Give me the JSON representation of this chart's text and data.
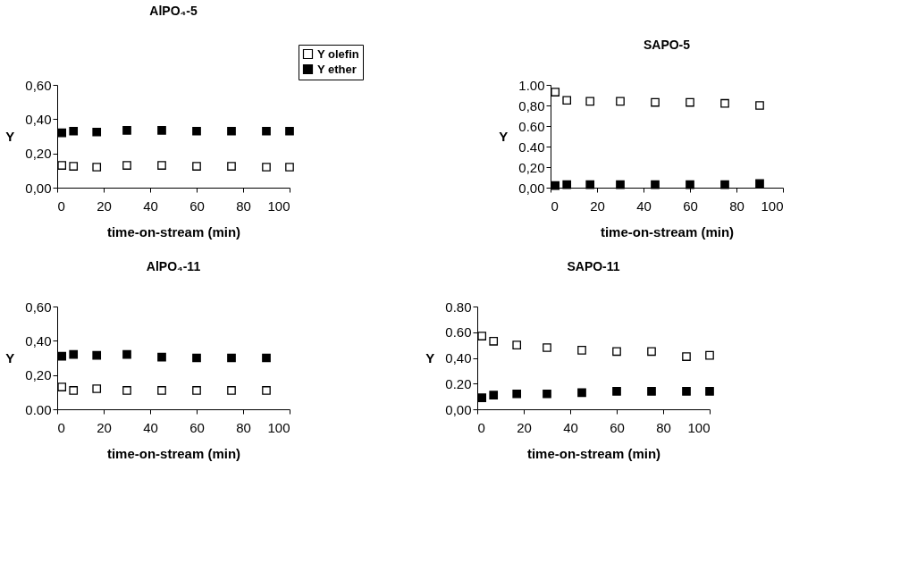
{
  "chart_data": [
    {
      "type": "scatter",
      "title": "AlPO₄-5",
      "xlabel": "time-on-stream (min)",
      "ylabel": "Y",
      "marker": "square",
      "legend": "top right",
      "grid": false,
      "xlim": [
        0,
        100
      ],
      "xticks": [
        0,
        20,
        40,
        60,
        80,
        100
      ],
      "ylim": [
        0,
        0.6
      ],
      "yticks": [
        {
          "value": 0,
          "label": "0,00"
        },
        {
          "value": 0.2,
          "label": "0,20"
        },
        {
          "value": 0.4,
          "label": "0,40"
        },
        {
          "value": 0.6,
          "label": "0,60"
        }
      ],
      "x": [
        2,
        7,
        17,
        30,
        45,
        60,
        75,
        90,
        100
      ],
      "series": [
        {
          "name": "Y olefin",
          "color": "#ffffff",
          "values": [
            0.13,
            0.125,
            0.12,
            0.13,
            0.13,
            0.125,
            0.125,
            0.12,
            0.12
          ]
        },
        {
          "name": "Y ether",
          "color": "#000000",
          "values": [
            0.32,
            0.33,
            0.325,
            0.335,
            0.335,
            0.33,
            0.33,
            0.33,
            0.33
          ]
        }
      ]
    },
    {
      "type": "scatter",
      "title": "SAPO-5",
      "xlabel": "time-on-stream (min)",
      "ylabel": "Y",
      "marker": "square",
      "grid": false,
      "xlim": [
        0,
        100
      ],
      "xticks": [
        0,
        20,
        40,
        60,
        80,
        100
      ],
      "ylim": [
        0,
        1.0
      ],
      "yticks": [
        {
          "value": 0,
          "label": "0,00"
        },
        {
          "value": 0.2,
          "label": "0,20"
        },
        {
          "value": 0.4,
          "label": "0.40"
        },
        {
          "value": 0.6,
          "label": "0.60"
        },
        {
          "value": 0.8,
          "label": "0,80"
        },
        {
          "value": 1.0,
          "label": "1.00"
        }
      ],
      "x": [
        2,
        7,
        17,
        30,
        45,
        60,
        75,
        90
      ],
      "series": [
        {
          "color": "#ffffff",
          "values": [
            0.93,
            0.85,
            0.84,
            0.84,
            0.83,
            0.83,
            0.82,
            0.8
          ]
        },
        {
          "color": "#000000",
          "values": [
            0.02,
            0.03,
            0.03,
            0.03,
            0.03,
            0.03,
            0.03,
            0.04
          ]
        }
      ]
    },
    {
      "type": "scatter",
      "title": "AlPO₄-11",
      "xlabel": "time-on-stream (min)",
      "ylabel": "Y",
      "marker": "square",
      "grid": false,
      "xlim": [
        0,
        100
      ],
      "xticks": [
        0,
        20,
        40,
        60,
        80,
        100
      ],
      "ylim": [
        0,
        0.6
      ],
      "yticks": [
        {
          "value": 0,
          "label": "0.00"
        },
        {
          "value": 0.2,
          "label": "0,20"
        },
        {
          "value": 0.4,
          "label": "0,40"
        },
        {
          "value": 0.6,
          "label": "0,60"
        }
      ],
      "x": [
        2,
        7,
        17,
        30,
        45,
        60,
        75,
        90
      ],
      "series": [
        {
          "color": "#ffffff",
          "values": [
            0.13,
            0.11,
            0.12,
            0.11,
            0.11,
            0.11,
            0.11,
            0.11
          ]
        },
        {
          "color": "#000000",
          "values": [
            0.31,
            0.32,
            0.315,
            0.32,
            0.305,
            0.3,
            0.3,
            0.3
          ]
        }
      ]
    },
    {
      "type": "scatter",
      "title": "SAPO-11",
      "xlabel": "time-on-stream (min)",
      "ylabel": "Y",
      "marker": "square",
      "grid": false,
      "xlim": [
        0,
        100
      ],
      "xticks": [
        0,
        20,
        40,
        60,
        80,
        100
      ],
      "ylim": [
        0,
        0.8
      ],
      "yticks": [
        {
          "value": 0,
          "label": "0,00"
        },
        {
          "value": 0.2,
          "label": "0.20"
        },
        {
          "value": 0.4,
          "label": "0,40"
        },
        {
          "value": 0.6,
          "label": "0.60"
        },
        {
          "value": 0.8,
          "label": "0.80"
        }
      ],
      "x": [
        2,
        7,
        17,
        30,
        45,
        60,
        75,
        90,
        100
      ],
      "series": [
        {
          "color": "#ffffff",
          "values": [
            0.57,
            0.53,
            0.5,
            0.48,
            0.46,
            0.45,
            0.45,
            0.41,
            0.42
          ]
        },
        {
          "color": "#000000",
          "values": [
            0.09,
            0.11,
            0.12,
            0.12,
            0.13,
            0.14,
            0.14,
            0.14,
            0.14
          ]
        }
      ]
    }
  ]
}
